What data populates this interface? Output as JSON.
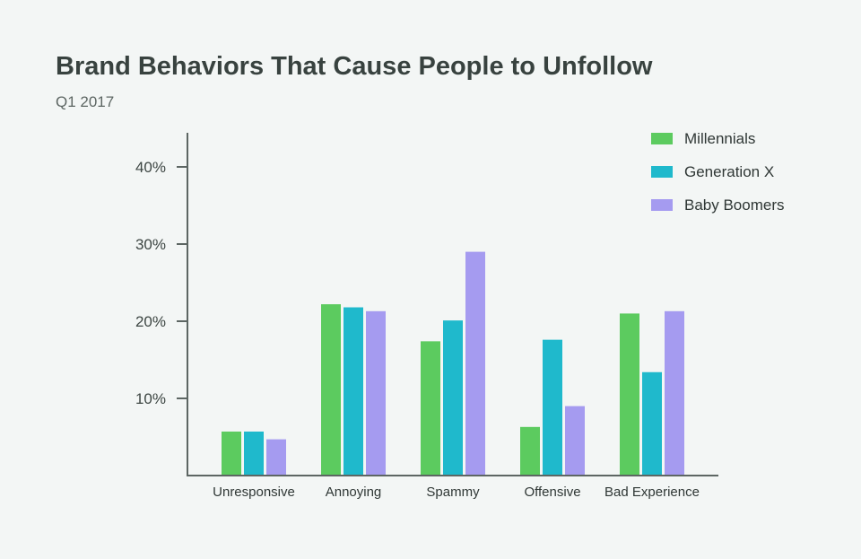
{
  "header": {
    "title": "Brand Behaviors That Cause People to Unfollow",
    "subtitle": "Q1 2017"
  },
  "chart_data": {
    "type": "bar",
    "title": "Brand Behaviors That Cause People to Unfollow",
    "subtitle": "Q1 2017",
    "xlabel": "",
    "ylabel": "",
    "ylim": [
      0,
      44
    ],
    "yticks": [
      10,
      20,
      30,
      40
    ],
    "ytick_labels": [
      "10%",
      "20%",
      "30%",
      "40%"
    ],
    "grid": false,
    "legend_position": "top-right",
    "categories": [
      "Unresponsive",
      "Annoying",
      "Spammy",
      "Offensive",
      "Bad Experience"
    ],
    "series": [
      {
        "name": "Millennials",
        "color": "#5ccb5f",
        "values": [
          5.7,
          22.2,
          17.4,
          6.3,
          21.0
        ]
      },
      {
        "name": "Generation X",
        "color": "#1fb9cc",
        "values": [
          5.7,
          21.8,
          20.1,
          17.6,
          13.4
        ]
      },
      {
        "name": "Baby Boomers",
        "color": "#a59bf0",
        "values": [
          4.7,
          21.3,
          29.0,
          9.0,
          21.3
        ]
      }
    ]
  }
}
